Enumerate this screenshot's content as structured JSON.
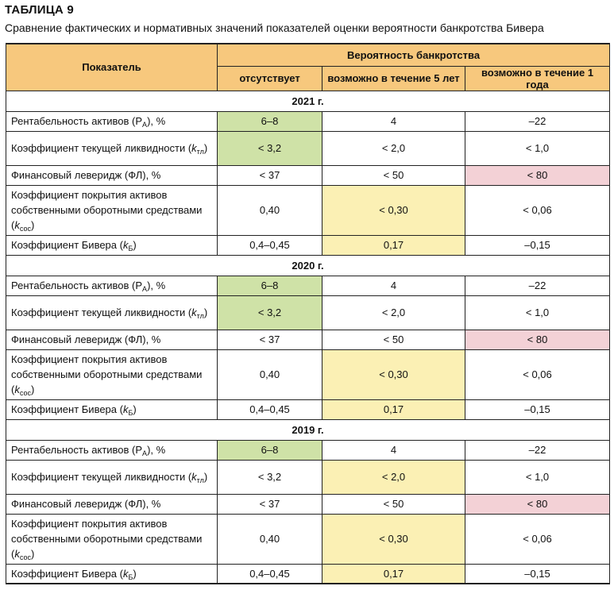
{
  "table_label": "ТАБЛИЦА 9",
  "caption": "Сравнение фактических и нормативных значений показателей оценки вероятности банкротства Бивера",
  "header": {
    "indicator": "Показатель",
    "probability": "Вероятность банкротства",
    "columns": [
      "отсутствует",
      "возможно в течение 5 лет",
      "возможно в течение 1 года"
    ]
  },
  "highlight_colors": {
    "green": "#cfe2a7",
    "yellow": "#fbf0b4",
    "pink": "#f3d1d6",
    "header": "#f7c87d"
  },
  "sections": [
    {
      "year": "2021 г.",
      "rows": [
        {
          "name": "Рентабельность активов (Р",
          "sub": "А",
          "suffix": "), %",
          "values": [
            "6–8",
            "4",
            "–22"
          ],
          "highlight": [
            "green",
            "",
            ""
          ]
        },
        {
          "name": "Коэффициент текущей ликвидности (",
          "var": "k",
          "sub": "тл",
          "suffix": ")",
          "values": [
            "< 3,2",
            "< 2,0",
            "< 1,0"
          ],
          "highlight": [
            "green",
            "",
            ""
          ]
        },
        {
          "name": "Финансовый леверидж (ФЛ), %",
          "values": [
            "< 37",
            "< 50",
            "< 80"
          ],
          "highlight": [
            "",
            "",
            "pink"
          ]
        },
        {
          "name": "Коэффициент покрытия активов собственными оборотными средствами (",
          "var": "k",
          "sub": "сос",
          "suffix": ")",
          "values": [
            "0,40",
            "< 0,30",
            "< 0,06"
          ],
          "highlight": [
            "",
            "yellow",
            ""
          ]
        },
        {
          "name": "Коэффициент Бивера (",
          "var": "k",
          "sub": "Б",
          "suffix": ")",
          "values": [
            "0,4–0,45",
            "0,17",
            "–0,15"
          ],
          "highlight": [
            "",
            "yellow",
            ""
          ]
        }
      ]
    },
    {
      "year": "2020 г.",
      "rows": [
        {
          "name": "Рентабельность активов (Р",
          "sub": "А",
          "suffix": "), %",
          "values": [
            "6–8",
            "4",
            "–22"
          ],
          "highlight": [
            "green",
            "",
            ""
          ]
        },
        {
          "name": "Коэффициент текущей ликвидности (",
          "var": "k",
          "sub": "тл",
          "suffix": ")",
          "values": [
            "< 3,2",
            "< 2,0",
            "< 1,0"
          ],
          "highlight": [
            "green",
            "",
            ""
          ]
        },
        {
          "name": "Финансовый леверидж (ФЛ), %",
          "values": [
            "< 37",
            "< 50",
            "< 80"
          ],
          "highlight": [
            "",
            "",
            "pink"
          ]
        },
        {
          "name": "Коэффициент покрытия активов собственными оборотными средствами (",
          "var": "k",
          "sub": "сос",
          "suffix": ")",
          "values": [
            "0,40",
            "< 0,30",
            "< 0,06"
          ],
          "highlight": [
            "",
            "yellow",
            ""
          ]
        },
        {
          "name": "Коэффициент Бивера (",
          "var": "k",
          "sub": "Б",
          "suffix": ")",
          "values": [
            "0,4–0,45",
            "0,17",
            "–0,15"
          ],
          "highlight": [
            "",
            "yellow",
            ""
          ]
        }
      ]
    },
    {
      "year": "2019 г.",
      "rows": [
        {
          "name": "Рентабельность активов (Р",
          "sub": "А",
          "suffix": "), %",
          "values": [
            "6–8",
            "4",
            "–22"
          ],
          "highlight": [
            "green",
            "",
            ""
          ]
        },
        {
          "name": "Коэффициент текущей ликвидности (",
          "var": "k",
          "sub": "тл",
          "suffix": ")",
          "values": [
            "< 3,2",
            "< 2,0",
            "< 1,0"
          ],
          "highlight": [
            "",
            "yellow",
            ""
          ]
        },
        {
          "name": "Финансовый леверидж (ФЛ), %",
          "values": [
            "< 37",
            "< 50",
            "< 80"
          ],
          "highlight": [
            "",
            "",
            "pink"
          ]
        },
        {
          "name": "Коэффициент покрытия активов собственными оборотными средствами (",
          "var": "k",
          "sub": "сос",
          "suffix": ")",
          "values": [
            "0,40",
            "< 0,30",
            "< 0,06"
          ],
          "highlight": [
            "",
            "yellow",
            ""
          ]
        },
        {
          "name": "Коэффициент Бивера (",
          "var": "k",
          "sub": "Б",
          "suffix": ")",
          "values": [
            "0,4–0,45",
            "0,17",
            "–0,15"
          ],
          "highlight": [
            "",
            "yellow",
            ""
          ]
        }
      ]
    }
  ]
}
